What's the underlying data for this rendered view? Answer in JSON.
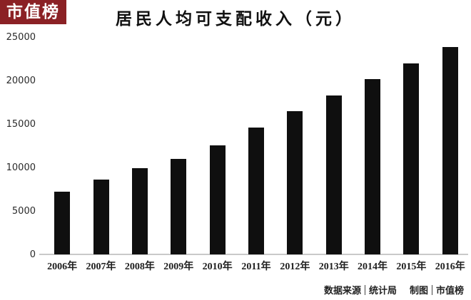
{
  "brand": {
    "logo_text": "市值榜"
  },
  "chart_data": {
    "type": "bar",
    "title": "居民人均可支配收入（元）",
    "categories": [
      "2006年",
      "2007年",
      "2008年",
      "2009年",
      "2010年",
      "2011年",
      "2012年",
      "2013年",
      "2014年",
      "2015年",
      "2016年"
    ],
    "values": [
      7229,
      8621,
      9956,
      10977,
      12520,
      14551,
      16510,
      18311,
      20167,
      21966,
      23821
    ],
    "xlabel": "",
    "ylabel": "",
    "ylim": [
      0,
      25000
    ],
    "y_ticks": [
      0,
      5000,
      10000,
      15000,
      20000,
      25000
    ],
    "grid": false,
    "legend": "none",
    "bar_color": "#0f0f0f"
  },
  "footer": {
    "source_label": "数据来源",
    "source_value": "统计局",
    "credit_label": "制图",
    "credit_value": "市值榜"
  },
  "colors": {
    "brand_red": "#8b2125",
    "bar": "#0f0f0f",
    "axis_line": "#c9c9c9",
    "text": "#1f1f1f"
  }
}
